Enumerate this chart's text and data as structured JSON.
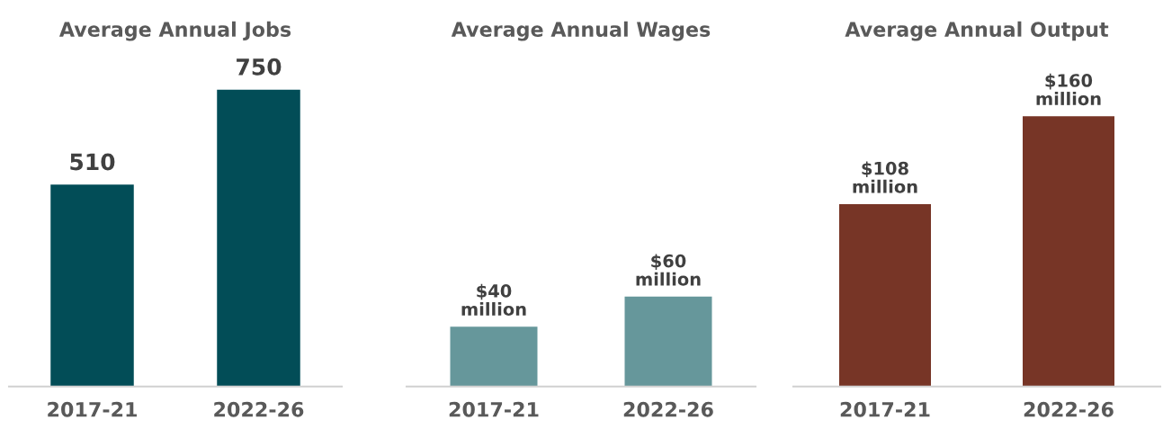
{
  "chart_data": [
    {
      "type": "bar",
      "title": "Average Annual Jobs",
      "categories": [
        "2017-21",
        "2022-26"
      ],
      "values": [
        510,
        750
      ],
      "color": "#024d57",
      "data_labels": true,
      "grid": false,
      "legend": false
    },
    {
      "type": "bar",
      "title": "Average Annual Wages",
      "categories": [
        "2017-21",
        "2022-26"
      ],
      "values": [
        40000000,
        60000000
      ],
      "color": "#66979b",
      "value_labels": [
        "$40\nmillion",
        "$60\nmillion"
      ],
      "grid": false,
      "legend": false
    },
    {
      "type": "bar",
      "title": "Average Annual Output",
      "categories": [
        "2017-21",
        "2022-26"
      ],
      "values": [
        108000000,
        160000000
      ],
      "color": "#773526",
      "value_labels": [
        "$108\nmillion",
        "$160\nmillion"
      ],
      "grid": false,
      "legend": false
    }
  ]
}
